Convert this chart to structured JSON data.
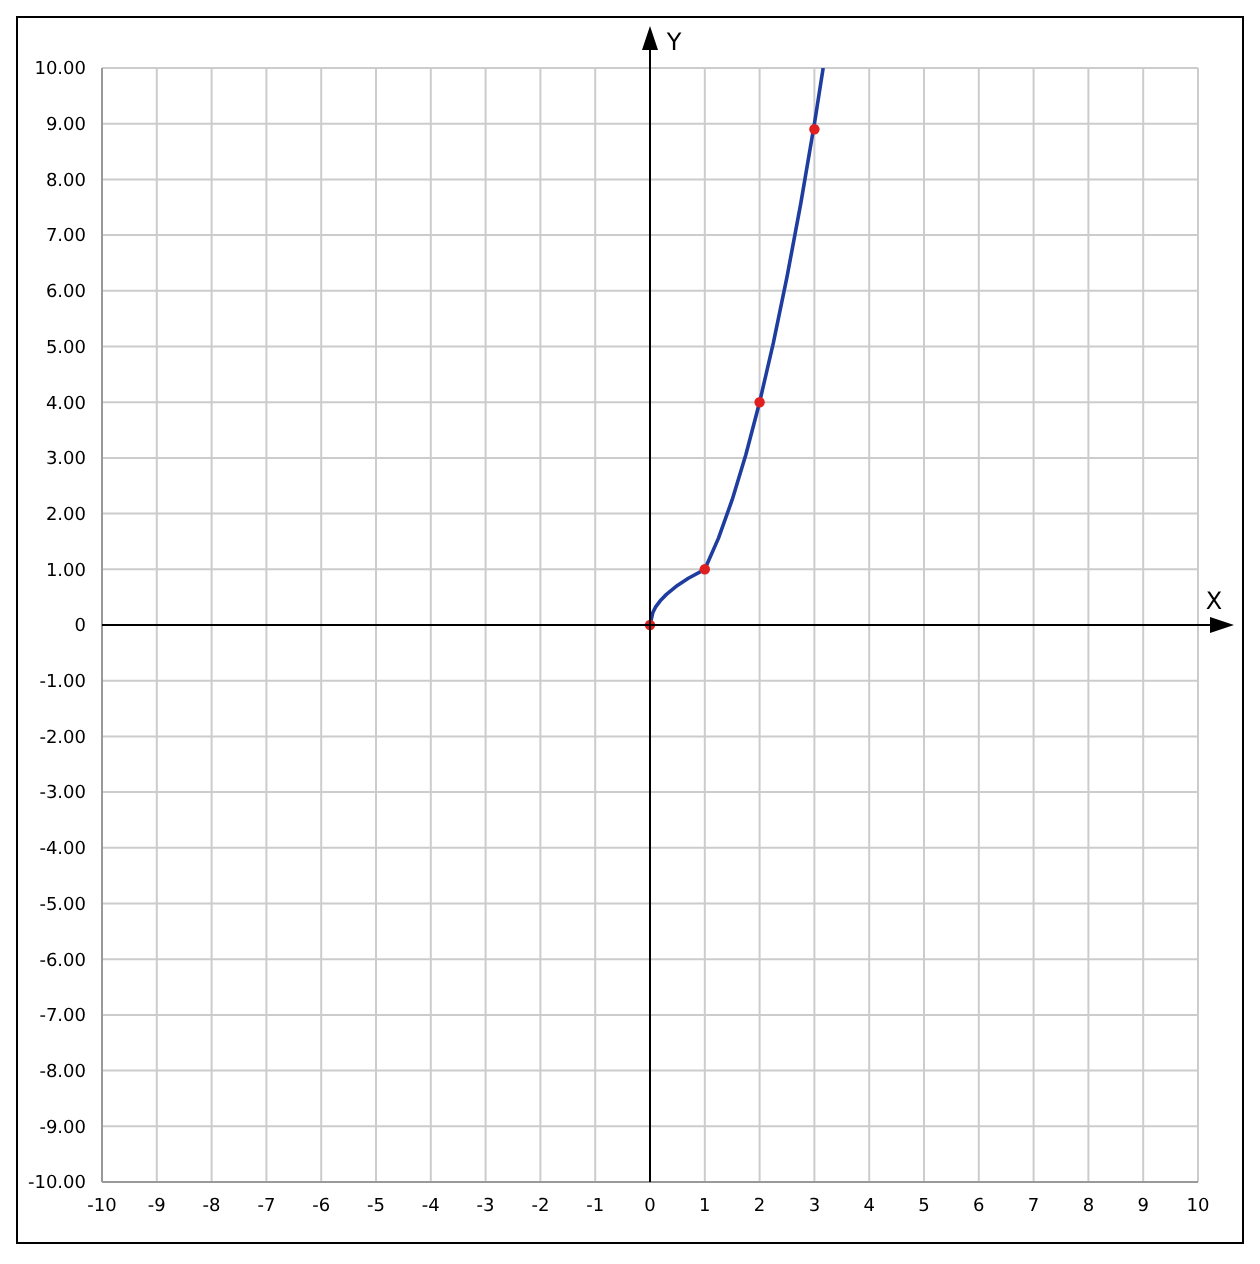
{
  "chart_data": {
    "type": "line",
    "xlabel": "X",
    "ylabel": "Y",
    "xlim": [
      -10,
      10
    ],
    "ylim": [
      -10,
      10
    ],
    "xticks": [
      -10,
      -9,
      -8,
      -7,
      -6,
      -5,
      -4,
      -3,
      -2,
      -1,
      0,
      1,
      2,
      3,
      4,
      5,
      6,
      7,
      8,
      9,
      10
    ],
    "yticks": [
      {
        "value": -10,
        "label": "-10.00"
      },
      {
        "value": -9,
        "label": "-9.00"
      },
      {
        "value": -8,
        "label": "-8.00"
      },
      {
        "value": -7,
        "label": "-7.00"
      },
      {
        "value": -6,
        "label": "-6.00"
      },
      {
        "value": -5,
        "label": "-5.00"
      },
      {
        "value": -4,
        "label": "-4.00"
      },
      {
        "value": -3,
        "label": "-3.00"
      },
      {
        "value": -2,
        "label": "-2.00"
      },
      {
        "value": -1,
        "label": "-1.00"
      },
      0,
      {
        "value": 1,
        "label": "1.00"
      },
      {
        "value": 2,
        "label": "2.00"
      },
      {
        "value": 3,
        "label": "3.00"
      },
      {
        "value": 4,
        "label": "4.00"
      },
      {
        "value": 5,
        "label": "5.00"
      },
      {
        "value": 6,
        "label": "6.00"
      },
      {
        "value": 7,
        "label": "7.00"
      },
      {
        "value": 8,
        "label": "8.00"
      },
      {
        "value": 9,
        "label": "9.00"
      },
      {
        "value": 10,
        "label": "10.00"
      }
    ],
    "grid": true,
    "series": [
      {
        "color": "#1f3d9e",
        "marker": "none",
        "x": [
          0,
          0.05,
          0.1,
          0.2,
          0.3,
          0.5,
          0.7,
          1,
          1.25,
          1.5,
          1.75,
          2,
          2.25,
          2.5,
          2.75,
          3,
          3.16
        ],
        "values": [
          0,
          0.22,
          0.32,
          0.45,
          0.55,
          0.71,
          0.84,
          1,
          1.56,
          2.25,
          3.06,
          4,
          5.06,
          6.25,
          7.56,
          9,
          10
        ]
      },
      {
        "type": "scatter",
        "color": "#e02020",
        "marker": "circle",
        "x": [
          0,
          1,
          2,
          3
        ],
        "values": [
          0,
          1,
          4,
          8.9
        ]
      }
    ]
  }
}
